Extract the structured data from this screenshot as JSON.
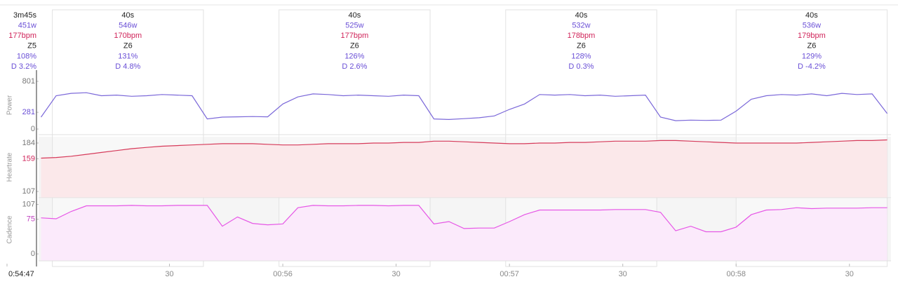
{
  "summary": {
    "duration": "3m45s",
    "power": "451w",
    "heartrate": "177bpm",
    "zone": "Z5",
    "intensity": "108%",
    "drift": "D 3.2%"
  },
  "intervals": [
    {
      "start": 12,
      "end": 52,
      "duration": "40s",
      "power": "546w",
      "heartrate": "170bpm",
      "zone": "Z6",
      "intensity": "131%",
      "drift": "D 4.8%"
    },
    {
      "start": 72,
      "end": 112,
      "duration": "40s",
      "power": "525w",
      "heartrate": "177bpm",
      "zone": "Z6",
      "intensity": "126%",
      "drift": "D 2.6%"
    },
    {
      "start": 132,
      "end": 172,
      "duration": "40s",
      "power": "532w",
      "heartrate": "178bpm",
      "zone": "Z6",
      "intensity": "128%",
      "drift": "D 0.3%"
    },
    {
      "start": 193,
      "end": 233,
      "duration": "40s",
      "power": "536w",
      "heartrate": "179bpm",
      "zone": "Z6",
      "intensity": "129%",
      "drift": "D -4.2%"
    }
  ],
  "chart_data": [
    {
      "type": "line",
      "ylabel": "Power",
      "color": "#7b68d9",
      "ylim": [
        -94,
        895
      ],
      "yticks": [
        0,
        281,
        801
      ],
      "xlim": [
        0,
        234
      ],
      "x": [
        9,
        13,
        17,
        21,
        25,
        29,
        33,
        37,
        41,
        45,
        49,
        53,
        57,
        61,
        65,
        69,
        73,
        77,
        81,
        85,
        89,
        93,
        97,
        101,
        105,
        109,
        113,
        117,
        121,
        125,
        129,
        133,
        137,
        141,
        145,
        149,
        153,
        157,
        161,
        165,
        169,
        173,
        177,
        181,
        185,
        189,
        193,
        197,
        201,
        205,
        209,
        213,
        217,
        221,
        225,
        229,
        233
      ],
      "values": [
        200,
        560,
        600,
        610,
        560,
        570,
        550,
        560,
        580,
        570,
        560,
        170,
        200,
        205,
        210,
        205,
        420,
        540,
        590,
        580,
        560,
        570,
        560,
        550,
        570,
        560,
        170,
        160,
        175,
        190,
        220,
        330,
        420,
        580,
        570,
        580,
        560,
        570,
        550,
        560,
        570,
        200,
        140,
        150,
        145,
        150,
        300,
        500,
        560,
        580,
        570,
        590,
        560,
        600,
        580,
        590,
        260
      ]
    },
    {
      "type": "area",
      "ylabel": "Heartrate",
      "color": "#d63a5a",
      "fill": "#fbe8ea",
      "ylim": [
        97,
        194
      ],
      "yticks": [
        107,
        159,
        184
      ],
      "xlim": [
        0,
        234
      ],
      "x": [
        9,
        13,
        17,
        21,
        25,
        29,
        33,
        37,
        41,
        45,
        49,
        53,
        57,
        61,
        65,
        69,
        73,
        77,
        81,
        85,
        89,
        93,
        97,
        101,
        105,
        109,
        113,
        117,
        121,
        125,
        129,
        133,
        137,
        141,
        145,
        149,
        153,
        157,
        161,
        165,
        169,
        173,
        177,
        181,
        185,
        189,
        193,
        197,
        201,
        205,
        209,
        213,
        217,
        221,
        225,
        229,
        233
      ],
      "values": [
        160,
        161,
        163,
        166,
        169,
        172,
        175,
        177,
        179,
        180,
        181,
        182,
        183,
        183,
        183,
        182,
        181,
        181,
        182,
        183,
        183,
        183,
        184,
        184,
        185,
        185,
        187,
        187,
        186,
        185,
        184,
        183,
        183,
        184,
        184,
        185,
        185,
        186,
        187,
        187,
        187,
        188,
        188,
        187,
        186,
        185,
        184,
        184,
        184,
        184,
        184,
        185,
        186,
        187,
        188,
        188,
        189
      ]
    },
    {
      "type": "area",
      "ylabel": "Cadence",
      "color": "#e657e6",
      "fill": "#fbeafb",
      "ylim": [
        -15,
        120
      ],
      "yticks": [
        0,
        75,
        107
      ],
      "xlim": [
        0,
        234
      ],
      "x": [
        9,
        13,
        17,
        21,
        25,
        29,
        33,
        37,
        41,
        45,
        49,
        53,
        57,
        61,
        65,
        69,
        73,
        77,
        81,
        85,
        89,
        93,
        97,
        101,
        105,
        109,
        113,
        117,
        121,
        125,
        129,
        133,
        137,
        141,
        145,
        149,
        153,
        157,
        161,
        165,
        169,
        173,
        177,
        181,
        185,
        189,
        193,
        197,
        201,
        205,
        209,
        213,
        217,
        221,
        225,
        229,
        233
      ],
      "values": [
        78,
        76,
        92,
        104,
        104,
        104,
        105,
        104,
        104,
        105,
        105,
        105,
        60,
        80,
        66,
        63,
        65,
        100,
        105,
        104,
        104,
        105,
        105,
        104,
        105,
        105,
        65,
        70,
        55,
        56,
        56,
        70,
        85,
        95,
        95,
        95,
        95,
        95,
        96,
        96,
        96,
        90,
        50,
        60,
        48,
        48,
        58,
        85,
        95,
        96,
        100,
        98,
        99,
        99,
        99,
        100,
        100
      ],
      "xticks": [
        {
          "value": 0,
          "label": "0:54:47"
        },
        {
          "value": 43,
          "label": "30"
        },
        {
          "value": 73,
          "label": "00:56"
        },
        {
          "value": 103,
          "label": "30"
        },
        {
          "value": 133,
          "label": "00:57"
        },
        {
          "value": 163,
          "label": "30"
        },
        {
          "value": 193,
          "label": "00:58"
        },
        {
          "value": 223,
          "label": "30"
        }
      ]
    }
  ]
}
